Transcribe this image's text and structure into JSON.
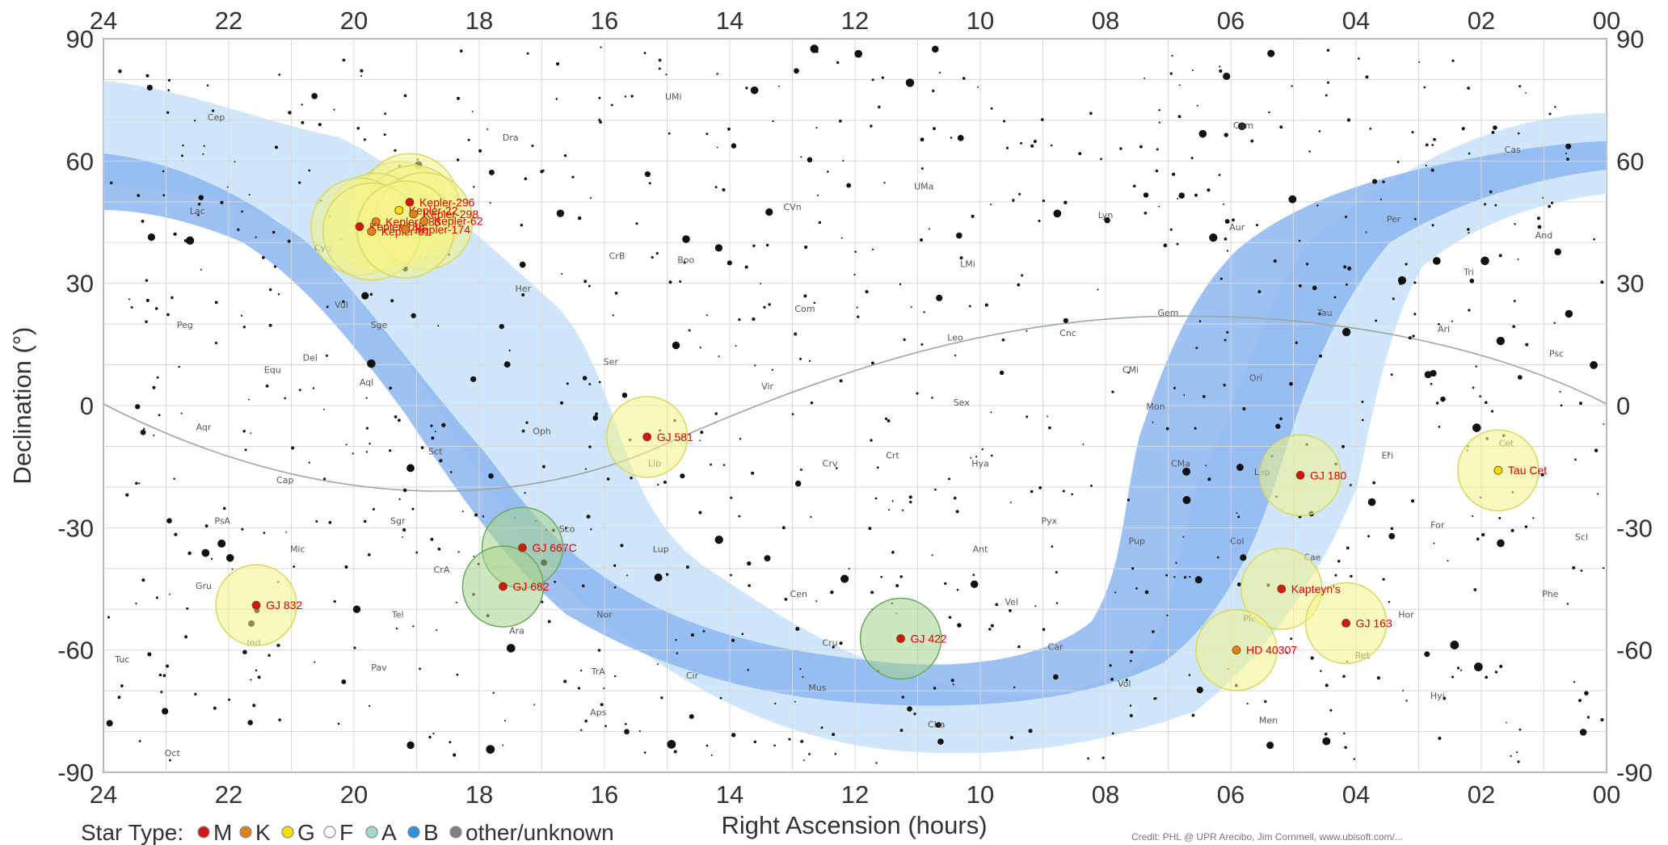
{
  "chart_data": {
    "type": "scatter",
    "xlabel": "Right Ascension (hours)",
    "ylabel": "Declination (°)",
    "xlim": [
      24,
      0
    ],
    "ylim": [
      -90,
      90
    ],
    "x_ticks": [
      "24",
      "22",
      "20",
      "18",
      "16",
      "14",
      "12",
      "10",
      "08",
      "06",
      "04",
      "02",
      "00"
    ],
    "y_ticks": [
      "90",
      "60",
      "30",
      "0",
      "-30",
      "-60",
      "-90"
    ],
    "grid": true,
    "legend": {
      "position": "bottom-left",
      "title": "Star Type:",
      "items": [
        {
          "label": "M",
          "color": "#d01818"
        },
        {
          "label": "K",
          "color": "#e08020"
        },
        {
          "label": "G",
          "color": "#f0e000"
        },
        {
          "label": "F",
          "color": "#ffffff"
        },
        {
          "label": "A",
          "color": "#a8d4d0"
        },
        {
          "label": "B",
          "color": "#3090e0"
        },
        {
          "label": "other/unknown",
          "color": "#808080"
        }
      ]
    },
    "planet_hosts": [
      {
        "name": "Kepler-22",
        "ra": 19.28,
        "dec": 47.9,
        "type": "G"
      },
      {
        "name": "Kepler-296",
        "ra": 19.11,
        "dec": 49.9,
        "type": "M"
      },
      {
        "name": "Kepler-298",
        "ra": 19.05,
        "dec": 47.0,
        "type": "K"
      },
      {
        "name": "Kepler-283",
        "ra": 19.65,
        "dec": 45.1,
        "type": "K"
      },
      {
        "name": "Kepler-186",
        "ra": 19.91,
        "dec": 43.9,
        "type": "M"
      },
      {
        "name": "Kepler-62",
        "ra": 18.88,
        "dec": 45.3,
        "type": "K"
      },
      {
        "name": "Kepler-61",
        "ra": 19.72,
        "dec": 42.7,
        "type": "K"
      },
      {
        "name": "Kepler-174",
        "ra": 19.18,
        "dec": 43.2,
        "type": "K"
      },
      {
        "name": "GJ 581",
        "ra": 15.32,
        "dec": -7.7,
        "type": "M"
      },
      {
        "name": "GJ 180",
        "ra": 4.89,
        "dec": -17.1,
        "type": "M"
      },
      {
        "name": "Tau Cet",
        "ra": 1.73,
        "dec": -15.9,
        "type": "G"
      },
      {
        "name": "GJ 667C",
        "ra": 17.31,
        "dec": -34.9,
        "type": "M"
      },
      {
        "name": "GJ 682",
        "ra": 17.62,
        "dec": -44.4,
        "type": "M"
      },
      {
        "name": "GJ 832",
        "ra": 21.56,
        "dec": -49.0,
        "type": "M"
      },
      {
        "name": "GJ 422",
        "ra": 11.27,
        "dec": -57.2,
        "type": "M"
      },
      {
        "name": "Kapteyn's",
        "ra": 5.19,
        "dec": -45.0,
        "type": "M"
      },
      {
        "name": "GJ 163",
        "ra": 4.16,
        "dec": -53.4,
        "type": "M"
      },
      {
        "name": "HD 40307",
        "ra": 5.91,
        "dec": -60.0,
        "type": "K"
      }
    ],
    "constellation_labels": [
      {
        "text": "UMi",
        "ra": 14.9,
        "dec": 75
      },
      {
        "text": "Dra",
        "ra": 17.5,
        "dec": 65
      },
      {
        "text": "Cep",
        "ra": 22.2,
        "dec": 70
      },
      {
        "text": "Cas",
        "ra": 1.5,
        "dec": 62
      },
      {
        "text": "Cam",
        "ra": 5.8,
        "dec": 68
      },
      {
        "text": "UMa",
        "ra": 10.9,
        "dec": 53
      },
      {
        "text": "CVn",
        "ra": 13.0,
        "dec": 48
      },
      {
        "text": "Lyn",
        "ra": 8.0,
        "dec": 46
      },
      {
        "text": "Per",
        "ra": 3.4,
        "dec": 45
      },
      {
        "text": "Aur",
        "ra": 5.9,
        "dec": 43
      },
      {
        "text": "And",
        "ra": 1.0,
        "dec": 41
      },
      {
        "text": "Lac",
        "ra": 22.5,
        "dec": 47
      },
      {
        "text": "Cyg",
        "ra": 20.5,
        "dec": 38
      },
      {
        "text": "LMi",
        "ra": 10.2,
        "dec": 34
      },
      {
        "text": "CrB",
        "ra": 15.8,
        "dec": 36
      },
      {
        "text": "Boo",
        "ra": 14.7,
        "dec": 35
      },
      {
        "text": "Her",
        "ra": 17.3,
        "dec": 28
      },
      {
        "text": "Tri",
        "ra": 2.2,
        "dec": 32
      },
      {
        "text": "Com",
        "ra": 12.8,
        "dec": 23
      },
      {
        "text": "Gem",
        "ra": 7.0,
        "dec": 22
      },
      {
        "text": "Tau",
        "ra": 4.5,
        "dec": 22
      },
      {
        "text": "Ari",
        "ra": 2.6,
        "dec": 18
      },
      {
        "text": "Vul",
        "ra": 20.2,
        "dec": 24
      },
      {
        "text": "Sge",
        "ra": 19.6,
        "dec": 19
      },
      {
        "text": "Peg",
        "ra": 22.7,
        "dec": 19
      },
      {
        "text": "Leo",
        "ra": 10.4,
        "dec": 16
      },
      {
        "text": "Cnc",
        "ra": 8.6,
        "dec": 17
      },
      {
        "text": "CMi",
        "ra": 7.6,
        "dec": 8
      },
      {
        "text": "Psc",
        "ra": 0.8,
        "dec": 12
      },
      {
        "text": "Del",
        "ra": 20.7,
        "dec": 11
      },
      {
        "text": "Equ",
        "ra": 21.3,
        "dec": 8
      },
      {
        "text": "Ser",
        "ra": 15.9,
        "dec": 10
      },
      {
        "text": "Aql",
        "ra": 19.8,
        "dec": 5
      },
      {
        "text": "Vir",
        "ra": 13.4,
        "dec": 4
      },
      {
        "text": "Sex",
        "ra": 10.3,
        "dec": 0
      },
      {
        "text": "Ori",
        "ra": 5.6,
        "dec": 6
      },
      {
        "text": "Mon",
        "ra": 7.2,
        "dec": -1
      },
      {
        "text": "Aqr",
        "ra": 22.4,
        "dec": -6
      },
      {
        "text": "Oph",
        "ra": 17.0,
        "dec": -7
      },
      {
        "text": "Lib",
        "ra": 15.2,
        "dec": -15
      },
      {
        "text": "Sct",
        "ra": 18.7,
        "dec": -12
      },
      {
        "text": "Crv",
        "ra": 12.4,
        "dec": -15
      },
      {
        "text": "Crt",
        "ra": 11.4,
        "dec": -13
      },
      {
        "text": "Hya",
        "ra": 10.0,
        "dec": -15
      },
      {
        "text": "CMa",
        "ra": 6.8,
        "dec": -15
      },
      {
        "text": "Lep",
        "ra": 5.5,
        "dec": -17
      },
      {
        "text": "Eri",
        "ra": 3.5,
        "dec": -13
      },
      {
        "text": "Cet",
        "ra": 1.6,
        "dec": -10
      },
      {
        "text": "Cap",
        "ra": 21.1,
        "dec": -19
      },
      {
        "text": "Sgr",
        "ra": 19.3,
        "dec": -29
      },
      {
        "text": "Sco",
        "ra": 16.6,
        "dec": -31
      },
      {
        "text": "PsA",
        "ra": 22.1,
        "dec": -29
      },
      {
        "text": "Pyx",
        "ra": 8.9,
        "dec": -29
      },
      {
        "text": "Ant",
        "ra": 10.0,
        "dec": -36
      },
      {
        "text": "Pup",
        "ra": 7.5,
        "dec": -34
      },
      {
        "text": "Col",
        "ra": 5.9,
        "dec": -34
      },
      {
        "text": "For",
        "ra": 2.7,
        "dec": -30
      },
      {
        "text": "Scl",
        "ra": 0.4,
        "dec": -33
      },
      {
        "text": "Mic",
        "ra": 20.9,
        "dec": -36
      },
      {
        "text": "Lup",
        "ra": 15.1,
        "dec": -36
      },
      {
        "text": "Cae",
        "ra": 4.7,
        "dec": -38
      },
      {
        "text": "Gru",
        "ra": 22.4,
        "dec": -45
      },
      {
        "text": "CrA",
        "ra": 18.6,
        "dec": -41
      },
      {
        "text": "Tel",
        "ra": 19.3,
        "dec": -52
      },
      {
        "text": "Ara",
        "ra": 17.4,
        "dec": -56
      },
      {
        "text": "Nor",
        "ra": 16.0,
        "dec": -52
      },
      {
        "text": "Cen",
        "ra": 12.9,
        "dec": -47
      },
      {
        "text": "Vel",
        "ra": 9.5,
        "dec": -49
      },
      {
        "text": "Phe",
        "ra": 0.9,
        "dec": -47
      },
      {
        "text": "Hor",
        "ra": 3.2,
        "dec": -52
      },
      {
        "text": "Ind",
        "ra": 21.6,
        "dec": -59
      },
      {
        "text": "Pav",
        "ra": 19.6,
        "dec": -65
      },
      {
        "text": "Tuc",
        "ra": 23.7,
        "dec": -63
      },
      {
        "text": "TrA",
        "ra": 16.1,
        "dec": -66
      },
      {
        "text": "Cir",
        "ra": 14.6,
        "dec": -67
      },
      {
        "text": "Mus",
        "ra": 12.6,
        "dec": -70
      },
      {
        "text": "Cru",
        "ra": 12.4,
        "dec": -59
      },
      {
        "text": "Car",
        "ra": 8.8,
        "dec": -60
      },
      {
        "text": "Vol",
        "ra": 7.7,
        "dec": -69
      },
      {
        "text": "Pic",
        "ra": 5.7,
        "dec": -53
      },
      {
        "text": "Ret",
        "ra": 3.9,
        "dec": -62
      },
      {
        "text": "Hyi",
        "ra": 2.7,
        "dec": -72
      },
      {
        "text": "Aps",
        "ra": 16.1,
        "dec": -76
      },
      {
        "text": "Men",
        "ra": 5.4,
        "dec": -78
      },
      {
        "text": "Cha",
        "ra": 10.7,
        "dec": -79
      },
      {
        "text": "Oct",
        "ra": 22.9,
        "dec": -86
      }
    ]
  },
  "credit": "Credit: PHL @ UPR Arecibo, Jim Cornmell, www.ubisoft.com/..."
}
